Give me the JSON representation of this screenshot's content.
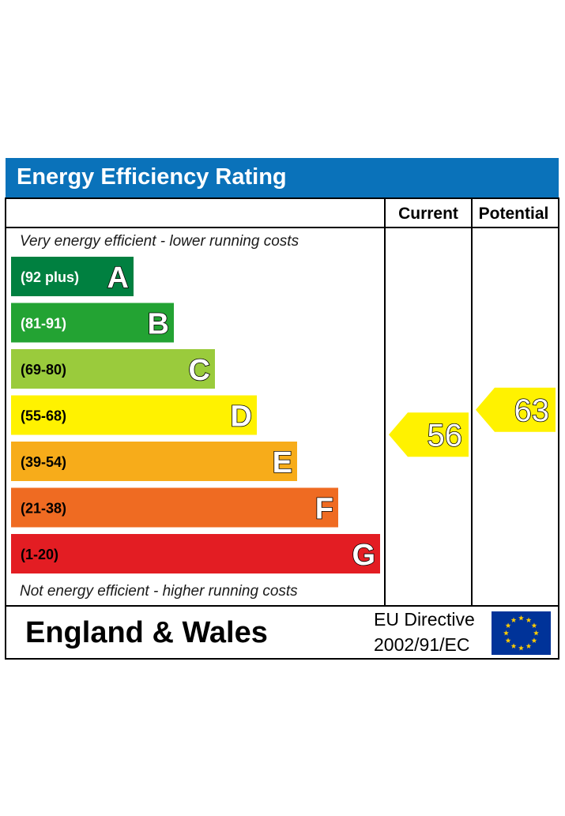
{
  "chart_data": {
    "type": "bar",
    "title": "Energy Efficiency Rating",
    "columns": {
      "current": "Current",
      "potential": "Potential"
    },
    "top_note": "Very energy efficient - lower running costs",
    "bottom_note": "Not energy efficient - higher running costs",
    "bands": [
      {
        "letter": "A",
        "range": "(92 plus)",
        "min": 92,
        "max": 100,
        "color": "#008040",
        "range_color": "#ffffff"
      },
      {
        "letter": "B",
        "range": "(81-91)",
        "min": 81,
        "max": 91,
        "color": "#23a333",
        "range_color": "#ffffff"
      },
      {
        "letter": "C",
        "range": "(69-80)",
        "min": 69,
        "max": 80,
        "color": "#9acb3c",
        "range_color": "#000000"
      },
      {
        "letter": "D",
        "range": "(55-68)",
        "min": 55,
        "max": 68,
        "color": "#fff200",
        "range_color": "#000000"
      },
      {
        "letter": "E",
        "range": "(39-54)",
        "min": 39,
        "max": 54,
        "color": "#f7ac1a",
        "range_color": "#000000"
      },
      {
        "letter": "F",
        "range": "(21-38)",
        "min": 21,
        "max": 38,
        "color": "#ef6b22",
        "range_color": "#000000"
      },
      {
        "letter": "G",
        "range": "(1-20)",
        "min": 1,
        "max": 20,
        "color": "#e31d23",
        "range_color": "#000000"
      }
    ],
    "current": {
      "value": 56,
      "band": "D",
      "color": "#fff200"
    },
    "potential": {
      "value": 63,
      "band": "D",
      "color": "#fff200"
    }
  },
  "footer": {
    "region": "England & Wales",
    "directive_line1": "EU Directive",
    "directive_line2": "2002/91/EC",
    "flag_icon": "eu-flag-icon",
    "flag_color": "#003399",
    "star_color": "#ffcc00"
  },
  "colors": {
    "header": "#0a72ba",
    "border": "#000000"
  }
}
